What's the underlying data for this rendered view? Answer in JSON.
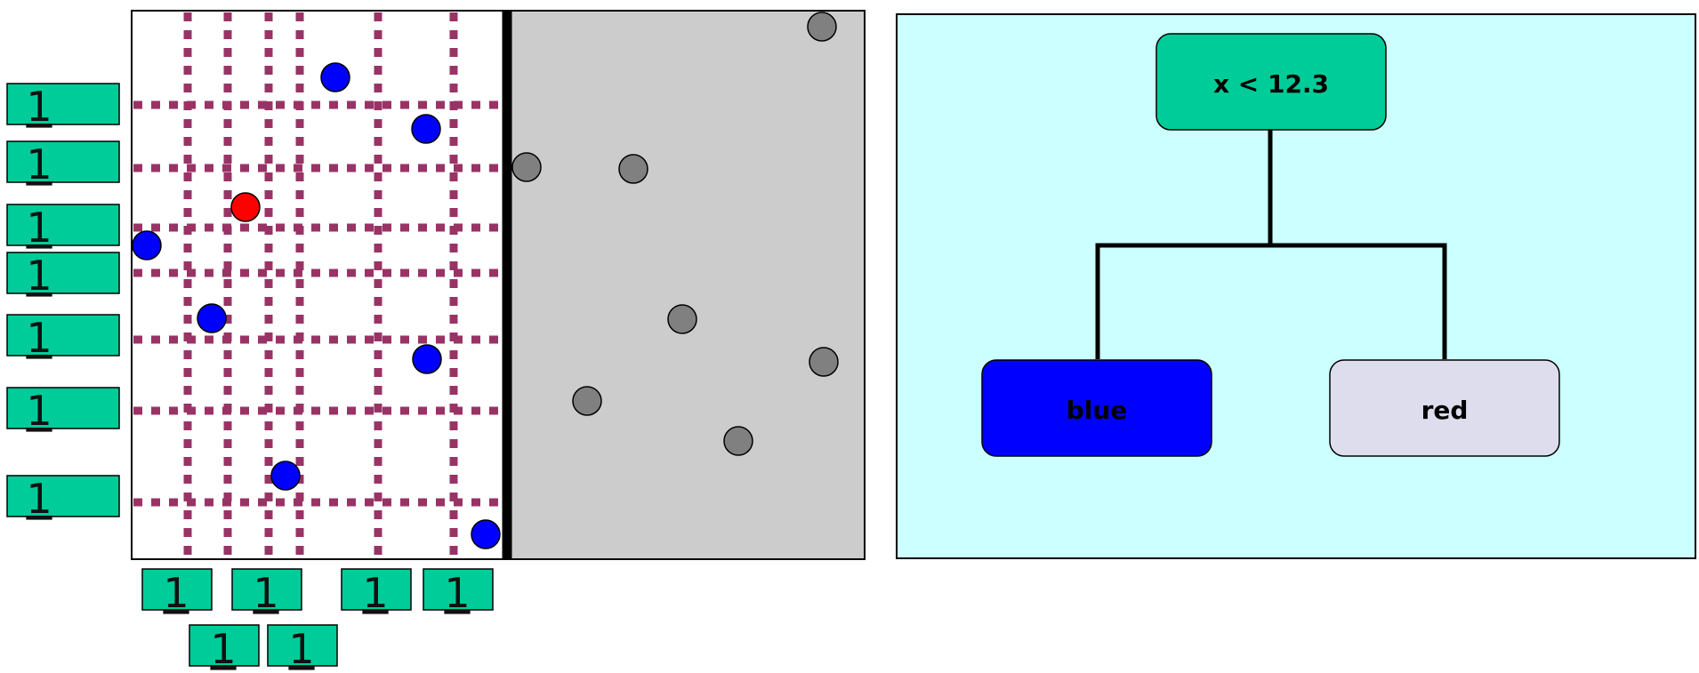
{
  "plot": {
    "grid_color": "#993366",
    "left_region_color": "#ffffff",
    "right_region_color": "#cccccc",
    "counter_color": "#00cc99",
    "points": [
      {
        "color": "blue",
        "hex": "#0000ff"
      },
      {
        "color": "blue",
        "hex": "#0000ff"
      },
      {
        "color": "red",
        "hex": "#ff0000"
      },
      {
        "color": "blue",
        "hex": "#0000ff"
      },
      {
        "color": "blue",
        "hex": "#0000ff"
      },
      {
        "color": "blue",
        "hex": "#0000ff"
      },
      {
        "color": "blue",
        "hex": "#0000ff"
      },
      {
        "color": "blue",
        "hex": "#0000ff"
      },
      {
        "color": "gray",
        "hex": "#808080"
      },
      {
        "color": "gray",
        "hex": "#808080"
      },
      {
        "color": "gray",
        "hex": "#808080"
      },
      {
        "color": "gray",
        "hex": "#808080"
      },
      {
        "color": "gray",
        "hex": "#808080"
      },
      {
        "color": "gray",
        "hex": "#808080"
      },
      {
        "color": "gray",
        "hex": "#808080"
      }
    ],
    "row_counts": [
      "1",
      "1",
      "1",
      "1",
      "1",
      "1",
      "1"
    ],
    "col_counts_top": [
      "1",
      "1",
      "1",
      "1"
    ],
    "col_counts_bottom": [
      "1",
      "1"
    ]
  },
  "tree": {
    "background": "#ccffff",
    "root": {
      "label": "x < 12.3",
      "color": "#00cc99"
    },
    "left_leaf": {
      "label": "blue",
      "color": "#0000ff"
    },
    "right_leaf": {
      "label": "red",
      "color": "#dddded"
    }
  }
}
